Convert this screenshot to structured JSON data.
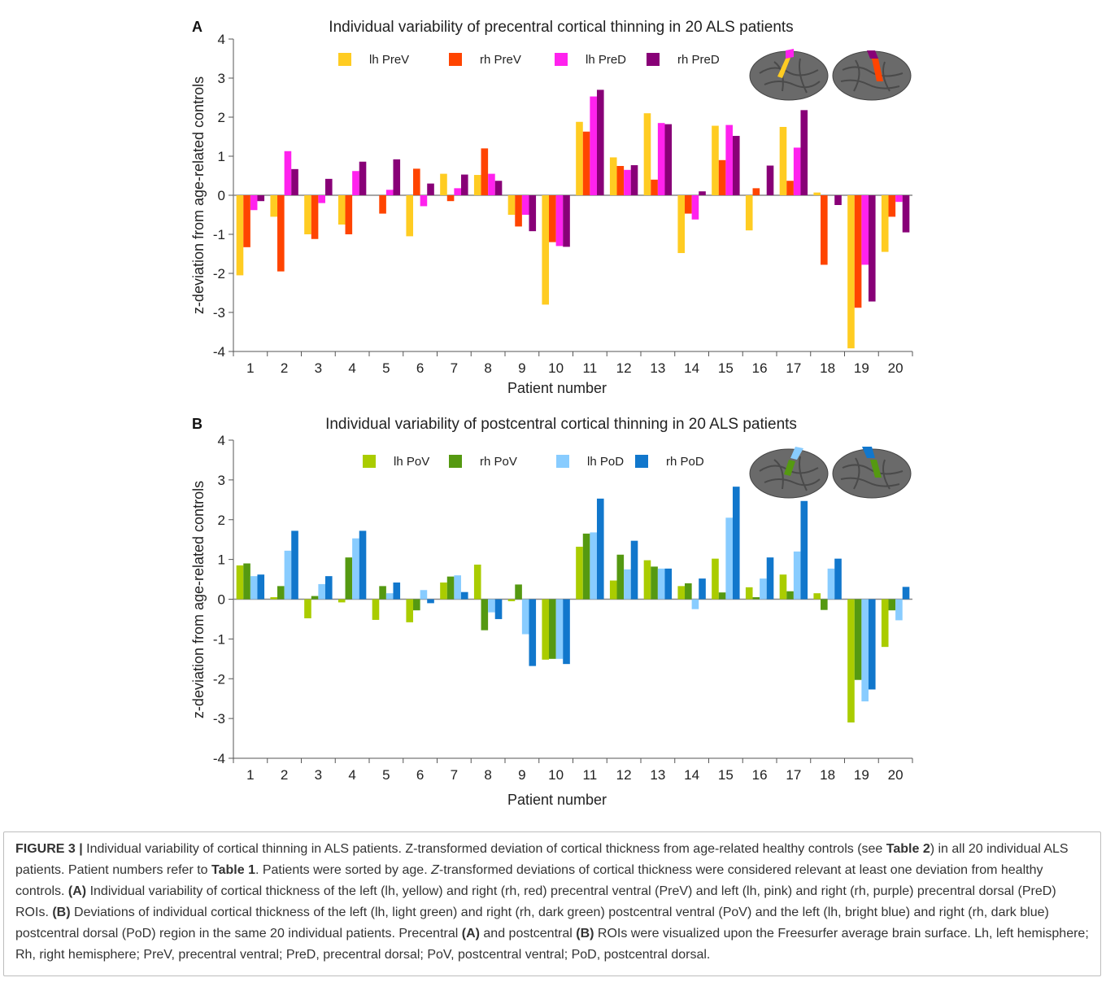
{
  "chart_data": [
    {
      "type": "bar",
      "panel_label": "A",
      "title": "Individual variability of precentral cortical thinning in 20 ALS patients",
      "xlabel": "Patient number",
      "ylabel": "z-deviation from age-related controls",
      "ylim": [
        -4,
        4
      ],
      "yticks": [
        -4,
        -3,
        -2,
        -1,
        0,
        1,
        2,
        3,
        4
      ],
      "grid": false,
      "legend_position": "top",
      "categories": [
        "1",
        "2",
        "3",
        "4",
        "5",
        "6",
        "7",
        "8",
        "9",
        "10",
        "11",
        "12",
        "13",
        "14",
        "15",
        "16",
        "17",
        "18",
        "19",
        "20"
      ],
      "series": [
        {
          "name": "lh PreV",
          "color": "#ffcc22",
          "values": [
            -2.05,
            -0.55,
            -1.0,
            -0.75,
            0.0,
            -1.05,
            0.55,
            0.52,
            -0.5,
            -2.8,
            1.88,
            0.97,
            2.1,
            -1.48,
            1.78,
            -0.9,
            1.75,
            0.07,
            -3.92,
            -1.45
          ]
        },
        {
          "name": "rh PreV",
          "color": "#ff4400",
          "values": [
            -1.33,
            -1.95,
            -1.12,
            -1.0,
            -0.47,
            0.68,
            -0.15,
            1.2,
            -0.8,
            -1.2,
            1.63,
            0.75,
            0.4,
            -0.47,
            0.9,
            0.18,
            0.37,
            -1.78,
            -2.88,
            -0.55
          ]
        },
        {
          "name": "lh PreD",
          "color": "#ff22ee",
          "values": [
            -0.38,
            1.13,
            -0.2,
            0.62,
            0.14,
            -0.28,
            0.18,
            0.55,
            -0.5,
            -1.3,
            2.53,
            0.65,
            1.85,
            -0.62,
            1.8,
            0.0,
            1.22,
            0.0,
            -1.78,
            -0.17
          ]
        },
        {
          "name": "rh PreD",
          "color": "#880077",
          "values": [
            -0.15,
            0.67,
            0.42,
            0.86,
            0.92,
            0.3,
            0.53,
            0.37,
            -0.92,
            -1.32,
            2.7,
            0.77,
            1.82,
            0.1,
            1.52,
            0.76,
            2.18,
            -0.25,
            -2.72,
            -0.95
          ]
        }
      ]
    },
    {
      "type": "bar",
      "panel_label": "B",
      "title": "Individual variability of postcentral cortical thinning in 20 ALS patients",
      "xlabel": "Patient number",
      "ylabel": "z-deviation from age-related controls",
      "ylim": [
        -4,
        4
      ],
      "yticks": [
        -4,
        -3,
        -2,
        -1,
        0,
        1,
        2,
        3,
        4
      ],
      "grid": false,
      "legend_position": "top",
      "categories": [
        "1",
        "2",
        "3",
        "4",
        "5",
        "6",
        "7",
        "8",
        "9",
        "10",
        "11",
        "12",
        "13",
        "14",
        "15",
        "16",
        "17",
        "18",
        "19",
        "20"
      ],
      "series": [
        {
          "name": "lh PoV",
          "color": "#aacc00",
          "values": [
            0.85,
            0.05,
            -0.48,
            -0.08,
            -0.52,
            -0.58,
            0.42,
            0.87,
            -0.05,
            -1.52,
            1.32,
            0.47,
            0.98,
            0.33,
            1.02,
            0.3,
            0.62,
            0.15,
            -3.1,
            -1.2
          ]
        },
        {
          "name": "rh PoV",
          "color": "#559911",
          "values": [
            0.9,
            0.33,
            0.08,
            1.05,
            0.33,
            -0.28,
            0.57,
            -0.78,
            0.37,
            -1.5,
            1.65,
            1.12,
            0.82,
            0.4,
            0.17,
            0.05,
            0.2,
            -0.27,
            -2.03,
            -0.28
          ]
        },
        {
          "name": "lh PoD",
          "color": "#88ccff",
          "values": [
            0.58,
            1.22,
            0.38,
            1.53,
            0.15,
            0.23,
            0.6,
            -0.33,
            -0.88,
            -1.5,
            1.68,
            0.75,
            0.77,
            -0.25,
            2.05,
            0.52,
            1.2,
            0.77,
            -2.57,
            -0.53
          ]
        },
        {
          "name": "rh PoD",
          "color": "#1177cc",
          "values": [
            0.62,
            1.72,
            0.58,
            1.72,
            0.42,
            -0.1,
            0.18,
            -0.5,
            -1.68,
            -1.63,
            2.53,
            1.47,
            0.77,
            0.52,
            2.83,
            1.05,
            2.47,
            1.02,
            -2.27,
            0.31
          ]
        }
      ]
    }
  ],
  "caption": {
    "figure_label": "FIGURE 3 |",
    "p1": " Individual variability of cortical thinning in ALS patients. Z-transformed deviation of cortical thickness from age-related healthy controls (see ",
    "table2": "Table 2",
    "p2": ") in all 20 individual ALS patients. Patient numbers refer to ",
    "table1": "Table 1",
    "p3": ". Patients were sorted by age. ",
    "z_italic": "Z",
    "p4": "-transformed deviations of cortical thickness were considered relevant at least one deviation from healthy controls. ",
    "a_bold": "(A)",
    "p5": " Individual variability of cortical thickness of the left (lh, yellow) and right (rh, red) precentral ventral (PreV) and left (lh, pink) and right (rh, purple) precentral dorsal (PreD) ROIs. ",
    "b_bold": "(B)",
    "p6": " Deviations of individual cortical thickness of the left (lh, light green) and right (rh, dark green) postcentral ventral (PoV) and the left (lh, bright blue) and right (rh, dark blue) postcentral dorsal (PoD) region in the same 20 individual patients. Precentral ",
    "a2_bold": "(A)",
    "p7": " and postcentral ",
    "b2_bold": "(B)",
    "p8": " ROIs were visualized upon the Freesurfer average brain surface. Lh, left hemisphere; Rh, right hemisphere; PreV, precentral ventral; PreD, precentral dorsal; PoV, postcentral ventral; PoD, postcentral dorsal."
  }
}
